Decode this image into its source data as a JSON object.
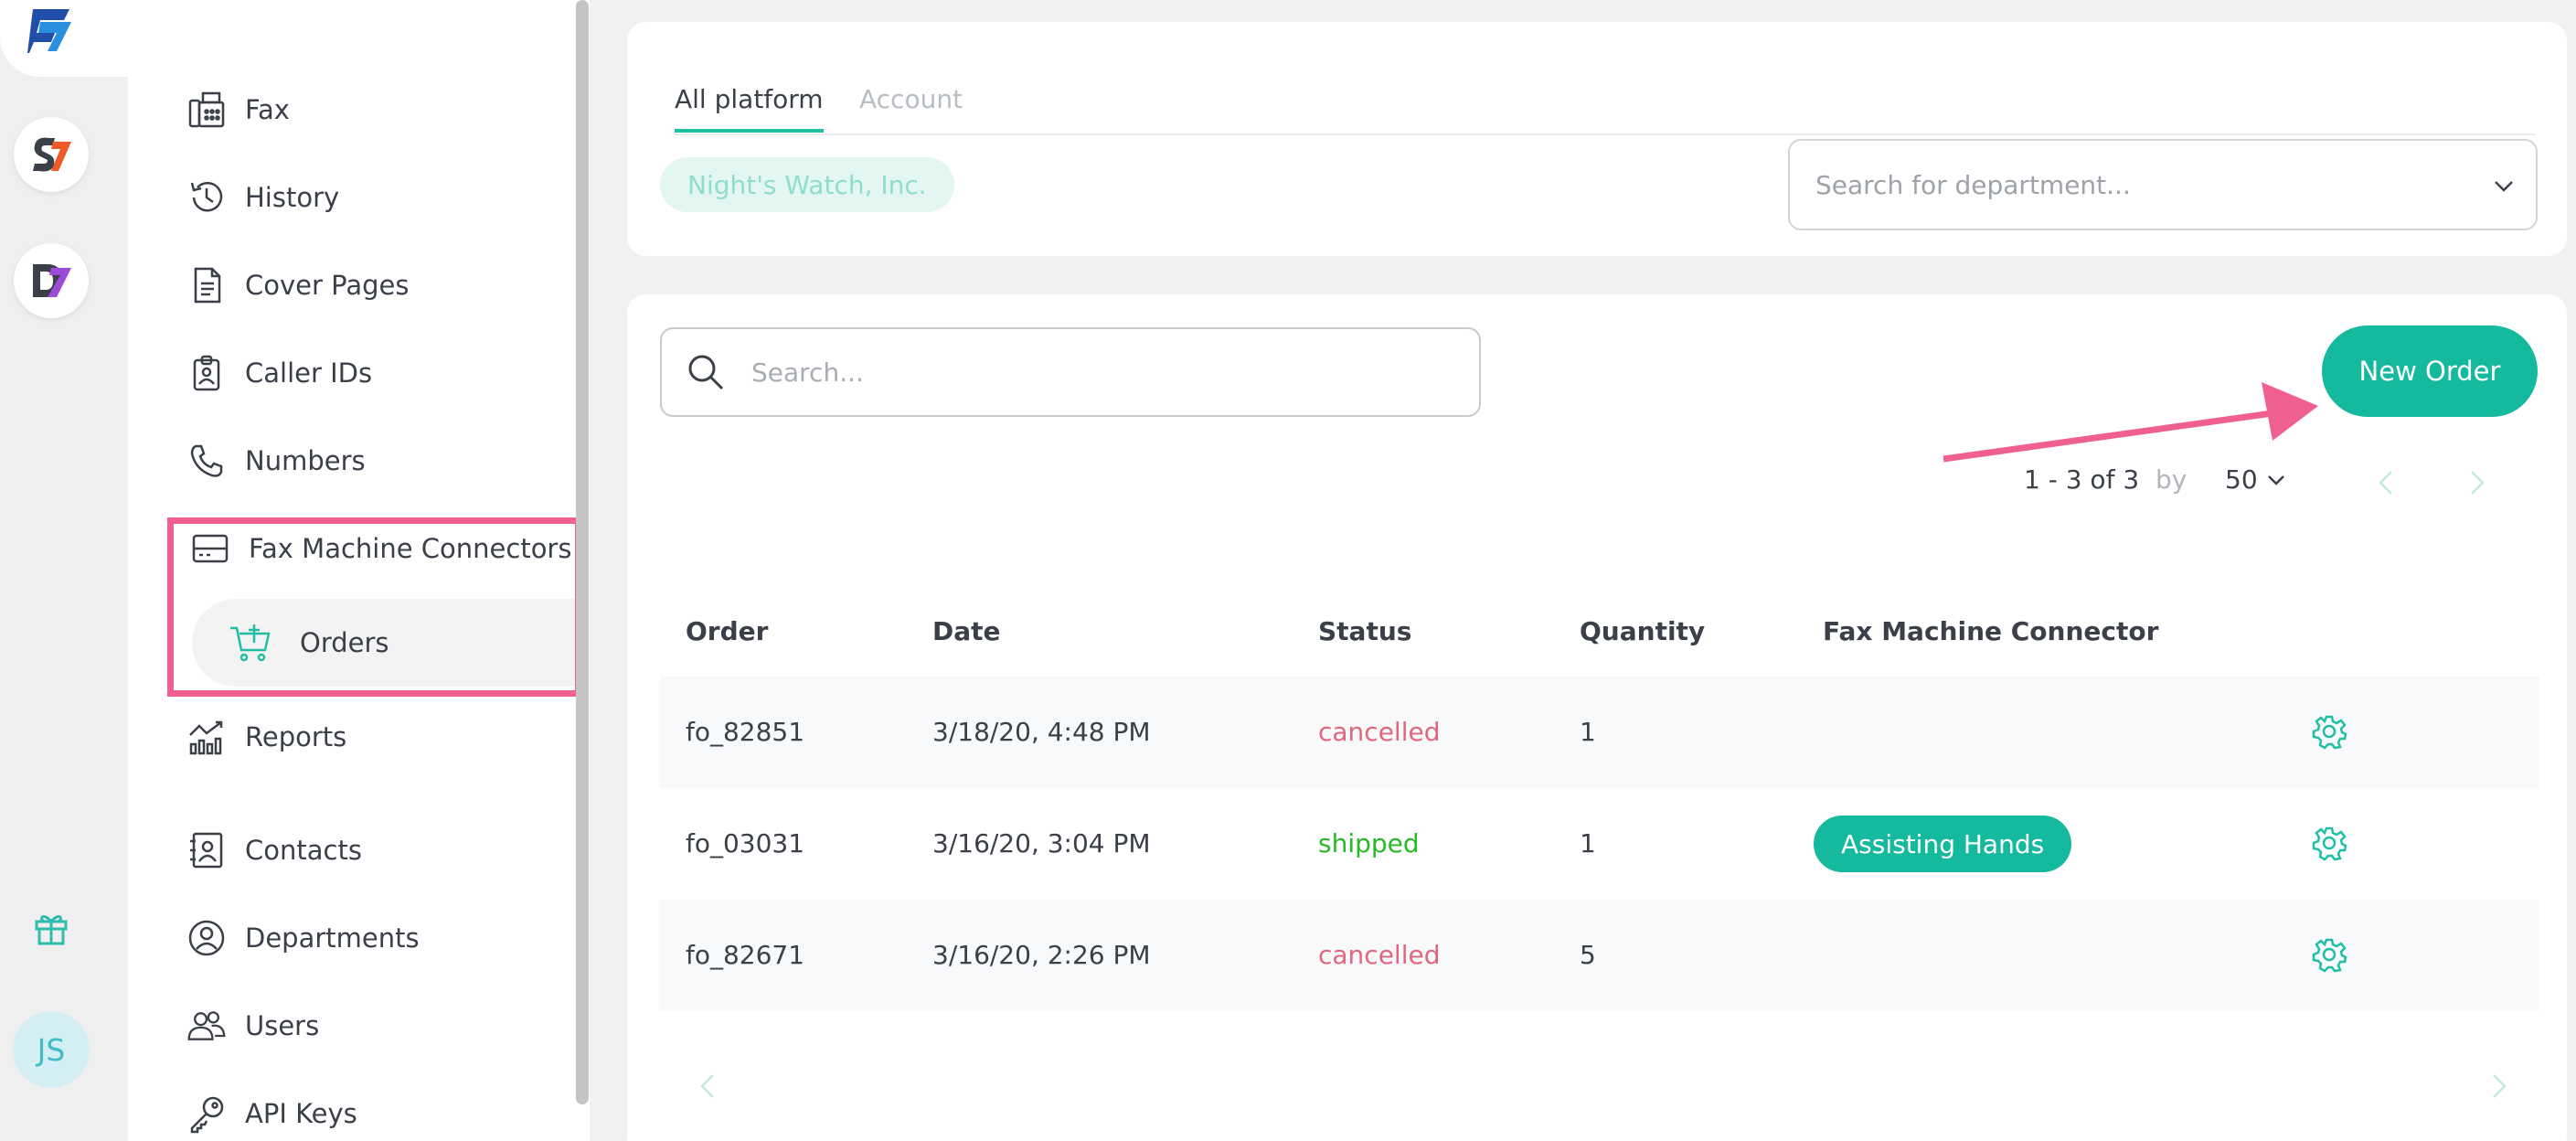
{
  "colors": {
    "accent": "#15b99d",
    "highlight": "#ef5f92",
    "cancelled": "#e2667f",
    "shipped": "#24bb24"
  },
  "rail": {
    "apps": [
      "faxplus-app-icon",
      "signplus-app-icon",
      "docs-app-icon"
    ],
    "gift_icon": "gift-icon",
    "avatar_initials": "JS"
  },
  "nav": {
    "items": [
      {
        "label": "Fax",
        "icon": "fax-icon"
      },
      {
        "label": "History",
        "icon": "history-icon"
      },
      {
        "label": "Cover Pages",
        "icon": "document-icon"
      },
      {
        "label": "Caller IDs",
        "icon": "id-badge-icon"
      },
      {
        "label": "Numbers",
        "icon": "phone-icon"
      },
      {
        "label": "Fax Machine Connectors",
        "icon": "fax-machine-icon"
      },
      {
        "label": "Reports",
        "icon": "chart-icon"
      },
      {
        "label": "Contacts",
        "icon": "contacts-icon"
      },
      {
        "label": "Departments",
        "icon": "departments-icon"
      },
      {
        "label": "Users",
        "icon": "users-icon"
      },
      {
        "label": "API Keys",
        "icon": "key-icon"
      }
    ],
    "sub_item": {
      "label": "Orders",
      "icon": "cart-plus-icon"
    }
  },
  "filter": {
    "tabs": [
      "All platform",
      "Account"
    ],
    "chip": "Night's Watch, Inc.",
    "department_placeholder": "Search for department..."
  },
  "orders": {
    "search_placeholder": "Search...",
    "new_order_label": "New Order",
    "pagination": {
      "range": "1 - 3 of 3",
      "by": "by",
      "page_size": "50"
    },
    "columns": [
      "Order",
      "Date",
      "Status",
      "Quantity",
      "Fax Machine Connector"
    ],
    "rows": [
      {
        "order": "fo_82851",
        "date": "3/18/20, 4:48 PM",
        "status": "cancelled",
        "quantity": "1",
        "connector": ""
      },
      {
        "order": "fo_03031",
        "date": "3/16/20, 3:04 PM",
        "status": "shipped",
        "quantity": "1",
        "connector": "Assisting Hands"
      },
      {
        "order": "fo_82671",
        "date": "3/16/20, 2:26 PM",
        "status": "cancelled",
        "quantity": "5",
        "connector": ""
      }
    ]
  }
}
